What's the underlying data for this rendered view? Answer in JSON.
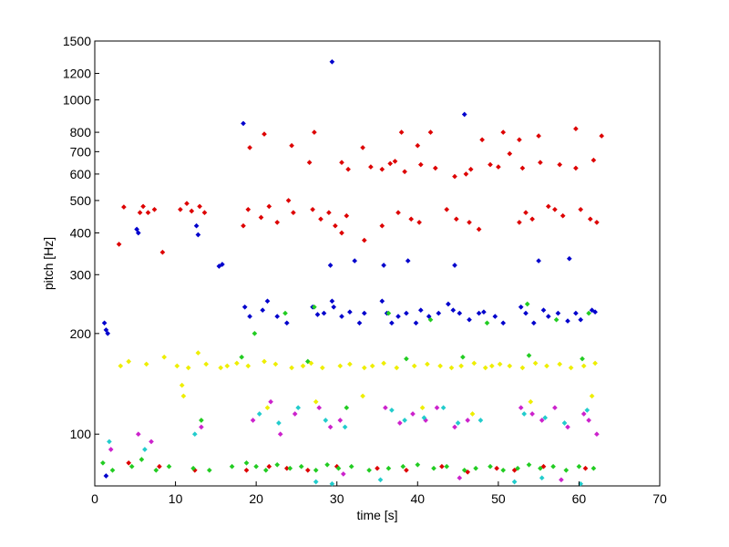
{
  "chart_data": {
    "type": "scatter",
    "title": "",
    "xlabel": "time [s]",
    "ylabel": "pitch [Hz]",
    "xlim": [
      0,
      70
    ],
    "ylim": [
      70,
      1500
    ],
    "yscale": "log",
    "grid": false,
    "legend": "none",
    "x_ticks": [
      0,
      10,
      20,
      30,
      40,
      50,
      60,
      70
    ],
    "y_ticks": [
      100,
      200,
      300,
      400,
      500,
      600,
      700,
      800,
      1000,
      1200,
      1500
    ],
    "colors": [
      "#0000cc",
      "#dd0000",
      "#22cc22",
      "#eeee00",
      "#cc22cc",
      "#22cccc"
    ],
    "series": [
      {
        "color": "#0000cc",
        "x": [
          1.2,
          1.4,
          1.6,
          5.2,
          5.4,
          12.6,
          12.8,
          15.4,
          15.8,
          18.6,
          19.2,
          20.8,
          21.4,
          22.6,
          23.8,
          27.0,
          27.6,
          28.4,
          29.4,
          29.6,
          30.6,
          31.6,
          32.8,
          33.4,
          35.6,
          36.2,
          36.8,
          37.6,
          38.6,
          39.8,
          40.4,
          41.4,
          42.6,
          43.8,
          44.4,
          45.2,
          46.4,
          47.6,
          48.2,
          49.6,
          50.6,
          52.8,
          53.4,
          54.4,
          55.6,
          56.2,
          57.4,
          58.6,
          59.6,
          60.2,
          61.6,
          62.0,
          35.8,
          38.8,
          44.6,
          55.0,
          58.8,
          18.4,
          29.4,
          45.8,
          1.4,
          29.2,
          32.2
        ],
        "y": [
          215,
          205,
          200,
          410,
          400,
          420,
          395,
          318,
          322,
          240,
          225,
          235,
          250,
          225,
          215,
          240,
          228,
          230,
          250,
          240,
          225,
          232,
          215,
          230,
          250,
          230,
          215,
          225,
          230,
          215,
          235,
          225,
          230,
          245,
          235,
          230,
          220,
          230,
          232,
          225,
          215,
          240,
          230,
          215,
          235,
          225,
          230,
          218,
          230,
          220,
          235,
          232,
          320,
          330,
          320,
          330,
          335,
          850,
          1300,
          905,
          75,
          320,
          330
        ]
      },
      {
        "color": "#dd0000",
        "x": [
          3.0,
          3.6,
          5.6,
          6.0,
          6.6,
          7.4,
          8.4,
          10.6,
          11.4,
          12.0,
          13.0,
          13.6,
          18.4,
          19.0,
          20.6,
          21.6,
          22.6,
          24.0,
          24.6,
          27.0,
          28.0,
          29.0,
          29.8,
          30.6,
          31.2,
          33.4,
          35.6,
          37.6,
          39.2,
          40.2,
          43.6,
          44.8,
          46.4,
          47.6,
          52.6,
          53.4,
          54.2,
          56.2,
          57.0,
          58.0,
          60.2,
          61.4,
          62.2,
          26.6,
          34.2,
          35.6,
          36.6,
          37.2,
          38.4,
          40.4,
          42.2,
          44.6,
          46.0,
          46.6,
          49.0,
          50.0,
          51.4,
          53.0,
          55.2,
          57.6,
          59.6,
          61.8,
          62.8,
          19.2,
          21.0,
          24.4,
          27.2,
          30.6,
          31.4,
          33.2,
          38.0,
          40.0,
          41.6,
          48.0,
          50.6,
          52.6,
          55.0,
          59.6,
          4.2,
          8.0,
          12.4,
          18.8,
          21.6,
          23.8,
          26.4,
          30.0,
          35.0,
          38.6,
          43.0,
          46.2,
          49.8,
          52.0,
          55.6,
          60.8
        ],
        "y": [
          370,
          478,
          460,
          480,
          460,
          470,
          350,
          470,
          490,
          465,
          480,
          460,
          420,
          470,
          445,
          480,
          430,
          500,
          460,
          470,
          440,
          460,
          420,
          400,
          450,
          380,
          420,
          460,
          440,
          430,
          470,
          440,
          430,
          410,
          430,
          460,
          440,
          480,
          470,
          450,
          470,
          440,
          430,
          650,
          630,
          620,
          645,
          655,
          610,
          640,
          625,
          590,
          600,
          620,
          640,
          630,
          690,
          625,
          650,
          640,
          625,
          660,
          780,
          720,
          790,
          730,
          800,
          650,
          620,
          720,
          800,
          730,
          800,
          760,
          800,
          760,
          780,
          820,
          82,
          80,
          78,
          78,
          80,
          79,
          78,
          80,
          79,
          78,
          80,
          77,
          79,
          78,
          80,
          79
        ]
      },
      {
        "color": "#22cc22",
        "x": [
          1.0,
          2.2,
          4.6,
          5.8,
          7.6,
          9.2,
          12.2,
          14.2,
          17.0,
          18.8,
          20.0,
          21.2,
          22.6,
          24.2,
          25.6,
          27.4,
          28.8,
          30.2,
          31.8,
          34.0,
          36.4,
          38.2,
          40.0,
          42.0,
          43.6,
          45.8,
          47.2,
          49.0,
          50.6,
          52.4,
          53.8,
          55.2,
          56.8,
          58.4,
          60.0,
          61.8,
          19.8,
          23.6,
          27.2,
          36.4,
          41.6,
          48.6,
          53.6,
          57.2,
          61.2,
          13.2,
          31.2,
          18.2,
          26.4,
          38.6,
          45.6,
          53.8,
          60.4
        ],
        "y": [
          82,
          78,
          80,
          84,
          78,
          80,
          79,
          78,
          80,
          82,
          80,
          78,
          81,
          79,
          80,
          78,
          81,
          79,
          80,
          78,
          79,
          80,
          81,
          79,
          80,
          78,
          79,
          80,
          78,
          79,
          81,
          79,
          80,
          78,
          80,
          79,
          200,
          230,
          240,
          230,
          220,
          215,
          245,
          220,
          230,
          110,
          120,
          170,
          165,
          168,
          170,
          172,
          168
        ]
      },
      {
        "color": "#eeee00",
        "x": [
          3.2,
          4.2,
          6.4,
          8.6,
          10.2,
          11.6,
          13.8,
          15.6,
          16.4,
          17.6,
          19.0,
          21.0,
          22.4,
          24.4,
          25.8,
          26.8,
          28.2,
          30.4,
          31.6,
          33.4,
          34.4,
          35.8,
          37.4,
          39.6,
          41.2,
          42.8,
          44.2,
          45.4,
          47.0,
          48.4,
          49.2,
          50.2,
          51.4,
          53.0,
          54.6,
          56.0,
          57.6,
          59.0,
          60.6,
          62.0,
          10.8,
          11.0,
          12.8,
          21.4,
          27.4,
          33.2,
          40.6,
          46.8,
          54.0,
          61.6
        ],
        "y": [
          160,
          165,
          162,
          170,
          160,
          158,
          162,
          158,
          160,
          163,
          160,
          165,
          162,
          158,
          160,
          163,
          158,
          160,
          162,
          158,
          160,
          163,
          158,
          160,
          162,
          160,
          158,
          160,
          163,
          158,
          160,
          162,
          160,
          158,
          163,
          160,
          162,
          158,
          160,
          163,
          140,
          130,
          175,
          120,
          125,
          130,
          120,
          115,
          125,
          130
        ]
      },
      {
        "color": "#cc22cc",
        "x": [
          2.0,
          5.4,
          7.0,
          13.2,
          19.6,
          21.8,
          23.0,
          24.8,
          27.8,
          29.2,
          30.4,
          36.0,
          37.8,
          39.4,
          41.0,
          42.4,
          44.6,
          46.2,
          52.8,
          54.2,
          55.4,
          57.0,
          58.6,
          60.6,
          61.2,
          62.2,
          30.8,
          45.2,
          57.8
        ],
        "y": [
          90,
          100,
          95,
          105,
          110,
          125,
          100,
          115,
          120,
          105,
          110,
          120,
          108,
          115,
          110,
          120,
          105,
          110,
          120,
          115,
          110,
          120,
          105,
          115,
          110,
          100,
          76,
          74,
          73
        ]
      },
      {
        "color": "#22cccc",
        "x": [
          1.8,
          6.2,
          12.4,
          20.4,
          22.8,
          25.2,
          28.6,
          31.0,
          36.8,
          38.4,
          40.8,
          43.2,
          45.0,
          47.8,
          53.2,
          55.8,
          58.2,
          61.0,
          27.4,
          29.4,
          35.4,
          52.0,
          55.4,
          60.2
        ],
        "y": [
          95,
          90,
          100,
          115,
          108,
          120,
          110,
          105,
          118,
          110,
          112,
          120,
          108,
          110,
          115,
          112,
          108,
          118,
          72,
          71,
          73,
          72,
          74,
          71
        ]
      }
    ]
  }
}
